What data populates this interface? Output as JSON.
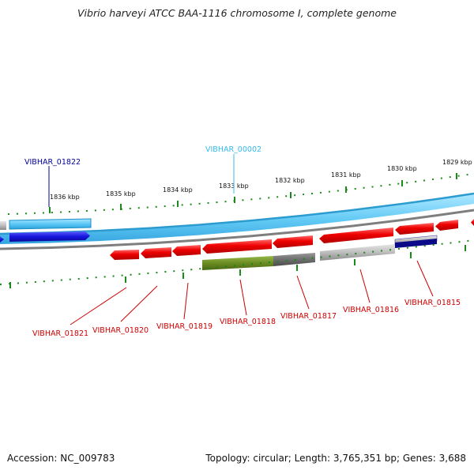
{
  "title": "Vibrio harveyi ATCC BAA-1116 chromosome I, complete genome",
  "footer": {
    "accession": "Accession: NC_009783",
    "info": "Topology: circular; Length: 3,765,351 bp; Genes: 3,688"
  },
  "colors": {
    "forward_track": "#66ccff",
    "backbone_light": "#5bbbe6",
    "backbone_gray": "#999999",
    "gene_red": "#ee0000",
    "gene_blue": "#1515dd",
    "gene_gray": "#b5b5b5",
    "gene_olive": "#6b8c22",
    "tick_green": "#1a8a1a"
  },
  "ticks": [
    {
      "label": "1836 kbp"
    },
    {
      "label": "1835 kbp"
    },
    {
      "label": "1834 kbp"
    },
    {
      "label": "1833 kbp"
    },
    {
      "label": "1832 kbp"
    },
    {
      "label": "1831 kbp"
    },
    {
      "label": "1830 kbp"
    },
    {
      "label": "1829 kbp"
    }
  ],
  "gene_labels_top": [
    {
      "name": "VIBHAR_01822",
      "color": "#000099"
    },
    {
      "name": "VIBHAR_00002",
      "color": "#33bbee"
    }
  ],
  "gene_labels_bottom": [
    {
      "name": "VIBHAR_01821",
      "color": "#cc0000"
    },
    {
      "name": "VIBHAR_01820",
      "color": "#cc0000"
    },
    {
      "name": "VIBHAR_01819",
      "color": "#cc0000"
    },
    {
      "name": "VIBHAR_01818",
      "color": "#cc0000"
    },
    {
      "name": "VIBHAR_01817",
      "color": "#cc0000"
    },
    {
      "name": "VIBHAR_01816",
      "color": "#cc0000"
    },
    {
      "name": "VIBHAR_01815",
      "color": "#cc0000"
    }
  ]
}
